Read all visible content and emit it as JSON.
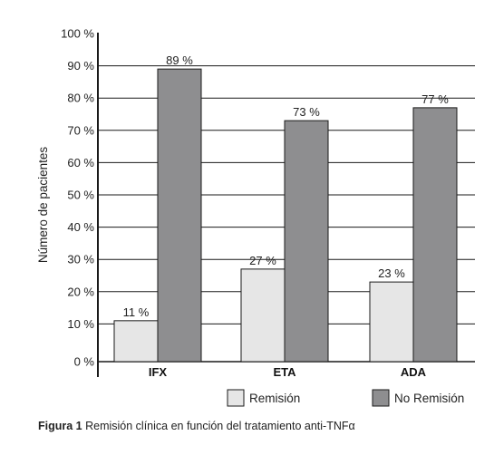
{
  "chart_data": {
    "type": "bar",
    "categories": [
      "IFX",
      "ETA",
      "ADA"
    ],
    "series": [
      {
        "name": "Remisión",
        "values": [
          11,
          27,
          23
        ],
        "labels": [
          "11 %",
          "27 %",
          "23 %"
        ],
        "color": "#e6e6e6"
      },
      {
        "name": "No Remisión",
        "values": [
          89,
          73,
          77
        ],
        "labels": [
          "89 %",
          "73 %",
          "77 %"
        ],
        "color": "#8e8e90"
      }
    ],
    "title": "",
    "xlabel": "",
    "ylabel": "Número de pacientes",
    "ylim": [
      0,
      100
    ],
    "yticks": [
      "0 %",
      "10 %",
      "20 %",
      "30 %",
      "40 %",
      "50 %",
      "60 %",
      "70 %",
      "80 %",
      "90 %",
      "100 %"
    ],
    "grid": true,
    "legend_position": "bottom-right"
  },
  "caption": {
    "label": "Figura 1",
    "text": " Remisión clínica en función del tratamiento anti-TNFα"
  }
}
